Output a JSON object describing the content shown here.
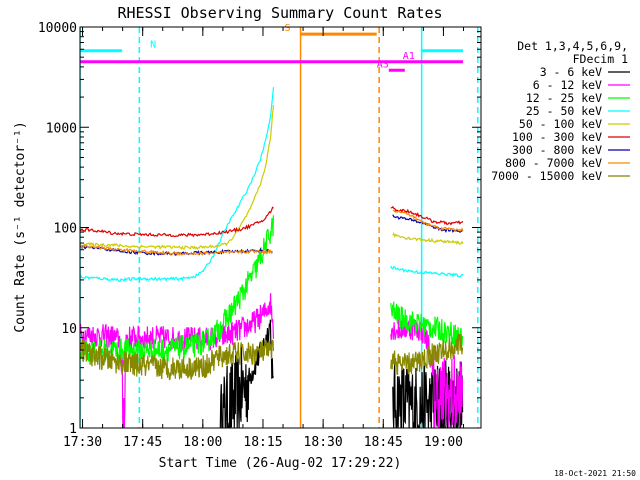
{
  "chart_data": {
    "type": "line",
    "title": "RHESSI Observing Summary Count Rates",
    "xlabel": "Start Time (26-Aug-02 17:29:22)",
    "ylabel": "Count Rate (s⁻¹ detector⁻¹)",
    "x_unit": "minutes after 17:29:22",
    "xlim": [
      0,
      100
    ],
    "ylim": [
      1,
      10000
    ],
    "y_scale": "log",
    "x_ticks": [
      {
        "x": 0.63,
        "label": "17:30"
      },
      {
        "x": 15.63,
        "label": "17:45"
      },
      {
        "x": 30.63,
        "label": "18:00"
      },
      {
        "x": 45.63,
        "label": "18:15"
      },
      {
        "x": 60.63,
        "label": "18:30"
      },
      {
        "x": 75.63,
        "label": "18:45"
      },
      {
        "x": 90.63,
        "label": "19:00"
      }
    ],
    "y_ticks": [
      {
        "y": 1,
        "label": "1"
      },
      {
        "y": 10,
        "label": "10"
      },
      {
        "y": 100,
        "label": "100"
      },
      {
        "y": 1000,
        "label": "1000"
      },
      {
        "y": 10000,
        "label": "10000"
      }
    ],
    "legend": {
      "title_lines": [
        "Det 1,3,4,5,6,9,",
        "FDecim 1"
      ],
      "placement": "right"
    },
    "series": [
      {
        "name": "3 - 6 keV",
        "color": "#000000",
        "noisy": true,
        "points": [
          [
            35,
            1
          ],
          [
            36,
            1.4
          ],
          [
            38,
            1.8
          ],
          [
            40,
            2.2
          ],
          [
            42,
            3
          ],
          [
            44,
            4.5
          ],
          [
            46,
            7
          ],
          [
            47.5,
            11
          ],
          [
            48.3,
            1
          ],
          [
            78,
            1.8
          ],
          [
            80,
            1.8
          ],
          [
            84,
            1.6
          ],
          [
            88,
            1.7
          ],
          [
            92,
            1.8
          ],
          [
            95.5,
            1.8
          ]
        ]
      },
      {
        "name": "6 - 12 keV",
        "color": "#ff00ff",
        "noisy": true,
        "points": [
          [
            0,
            8.5
          ],
          [
            8,
            8.2
          ],
          [
            10,
            7.5
          ],
          [
            10.8,
            1
          ],
          [
            11.5,
            8
          ],
          [
            16,
            8
          ],
          [
            20,
            8
          ],
          [
            24,
            7.8
          ],
          [
            28,
            7.8
          ],
          [
            32,
            7.8
          ],
          [
            36,
            8.2
          ],
          [
            40,
            9.5
          ],
          [
            43,
            11
          ],
          [
            46,
            14
          ],
          [
            47.5,
            18
          ],
          [
            48.3,
            9
          ],
          [
            77.5,
            10
          ],
          [
            79,
            9.5
          ],
          [
            82,
            10
          ],
          [
            85,
            9.5
          ],
          [
            87,
            7
          ],
          [
            88.5,
            2
          ],
          [
            95.5,
            2
          ]
        ]
      },
      {
        "name": "12 - 25 keV",
        "color": "#00ff00",
        "noisy": true,
        "points": [
          [
            0,
            5.8
          ],
          [
            10,
            6
          ],
          [
            20,
            6
          ],
          [
            28,
            6.5
          ],
          [
            32,
            7.5
          ],
          [
            35,
            10
          ],
          [
            38,
            15
          ],
          [
            41,
            24
          ],
          [
            44,
            40
          ],
          [
            46.5,
            70
          ],
          [
            48.3,
            110
          ],
          [
            77.5,
            15
          ],
          [
            80,
            12.5
          ],
          [
            84,
            11
          ],
          [
            88,
            10
          ],
          [
            92,
            9
          ],
          [
            95.5,
            8
          ]
        ]
      },
      {
        "name": "25 - 50 keV",
        "color": "#00ffff",
        "noisy": false,
        "points": [
          [
            0,
            32
          ],
          [
            5,
            31
          ],
          [
            10,
            30
          ],
          [
            15,
            31
          ],
          [
            20,
            30.5
          ],
          [
            26,
            31
          ],
          [
            29,
            33
          ],
          [
            31,
            38
          ],
          [
            33,
            50
          ],
          [
            35,
            75
          ],
          [
            37,
            110
          ],
          [
            39,
            150
          ],
          [
            41,
            210
          ],
          [
            43,
            300
          ],
          [
            45,
            480
          ],
          [
            46.5,
            800
          ],
          [
            47.5,
            1300
          ],
          [
            48.3,
            2600
          ],
          [
            77.5,
            40
          ],
          [
            80,
            38
          ],
          [
            84,
            36
          ],
          [
            88,
            35
          ],
          [
            92,
            34
          ],
          [
            95.5,
            33
          ]
        ]
      },
      {
        "name": "50 - 100 keV",
        "color": "#cccc00",
        "noisy": false,
        "points": [
          [
            0,
            68
          ],
          [
            8,
            67
          ],
          [
            12,
            65
          ],
          [
            20,
            64
          ],
          [
            28,
            63
          ],
          [
            32,
            64
          ],
          [
            35,
            66
          ],
          [
            37,
            70
          ],
          [
            39,
            90
          ],
          [
            41,
            120
          ],
          [
            43,
            170
          ],
          [
            45,
            270
          ],
          [
            46.5,
            450
          ],
          [
            47.5,
            800
          ],
          [
            48.3,
            1700
          ],
          [
            78,
            85
          ],
          [
            82,
            78
          ],
          [
            86,
            75
          ],
          [
            90,
            73
          ],
          [
            95.5,
            70
          ]
        ]
      },
      {
        "name": "100 - 300 keV",
        "color": "#dd0000",
        "noisy": false,
        "points": [
          [
            0,
            95
          ],
          [
            4,
            93
          ],
          [
            8,
            88
          ],
          [
            12,
            86
          ],
          [
            16,
            85
          ],
          [
            22,
            84
          ],
          [
            28,
            84
          ],
          [
            32,
            86
          ],
          [
            36,
            90
          ],
          [
            40,
            96
          ],
          [
            43,
            105
          ],
          [
            46,
            120
          ],
          [
            48.3,
            160
          ],
          [
            77.5,
            160
          ],
          [
            79,
            150
          ],
          [
            82,
            145
          ],
          [
            84,
            135
          ],
          [
            86,
            125
          ],
          [
            88,
            115
          ],
          [
            92,
            110
          ],
          [
            95.5,
            112
          ]
        ]
      },
      {
        "name": "300 - 800 keV",
        "color": "#0000aa",
        "noisy": false,
        "points": [
          [
            0,
            64
          ],
          [
            5,
            62
          ],
          [
            10,
            58
          ],
          [
            15,
            56
          ],
          [
            20,
            55
          ],
          [
            25,
            55
          ],
          [
            30,
            56
          ],
          [
            35,
            57
          ],
          [
            40,
            58
          ],
          [
            45,
            59
          ],
          [
            48,
            58
          ],
          [
            78,
            130
          ],
          [
            82,
            120
          ],
          [
            86,
            110
          ],
          [
            90,
            95
          ],
          [
            95.5,
            92
          ]
        ]
      },
      {
        "name": "800 - 7000 keV",
        "color": "#ff8800",
        "noisy": false,
        "points": [
          [
            0,
            65
          ],
          [
            5,
            63
          ],
          [
            10,
            60
          ],
          [
            15,
            58
          ],
          [
            20,
            56
          ],
          [
            25,
            55
          ],
          [
            30,
            55
          ],
          [
            35,
            56
          ],
          [
            40,
            57
          ],
          [
            45,
            58
          ],
          [
            48,
            57
          ],
          [
            78,
            150
          ],
          [
            82,
            135
          ],
          [
            86,
            110
          ],
          [
            90,
            98
          ],
          [
            95.5,
            95
          ]
        ]
      },
      {
        "name": "7000 - 15000 keV",
        "color": "#888800",
        "noisy": true,
        "points": [
          [
            0,
            6
          ],
          [
            5,
            5
          ],
          [
            10,
            4.5
          ],
          [
            15,
            4.2
          ],
          [
            20,
            4
          ],
          [
            25,
            4
          ],
          [
            30,
            4
          ],
          [
            32,
            4.2
          ],
          [
            34,
            5
          ],
          [
            38,
            5.5
          ],
          [
            42,
            5.5
          ],
          [
            46,
            5.8
          ],
          [
            48.3,
            5.8
          ],
          [
            77.5,
            5
          ],
          [
            80,
            4.2
          ],
          [
            84,
            4.5
          ],
          [
            88,
            5.5
          ],
          [
            92,
            6
          ],
          [
            95.5,
            7
          ]
        ]
      }
    ],
    "flag_lines": [
      {
        "label": "N",
        "color": "#00ffff",
        "y": 5800,
        "segments": [
          [
            0,
            10.5
          ],
          [
            85,
            95.5
          ]
        ],
        "label_x": 17.5
      },
      {
        "label": "S",
        "color": "#ff8800",
        "y": 8500,
        "segments": [
          [
            55,
            74
          ]
        ],
        "label_x": 53
      },
      {
        "label": "A1",
        "color": "#ff00ff",
        "y": 4500,
        "segments": [
          [
            0,
            95.5
          ]
        ],
        "label_x": 80.5
      },
      {
        "label": "A3",
        "color": "#ff00ff",
        "y": 3700,
        "segments": [
          [
            77,
            81
          ]
        ],
        "label_x": 74
      }
    ],
    "vertical_markers": [
      {
        "x": 0,
        "color": "#00ffff",
        "dashed": false
      },
      {
        "x": 14.8,
        "color": "#00ffff",
        "dashed": true
      },
      {
        "x": 55,
        "color": "#ff8800",
        "dashed": false
      },
      {
        "x": 74.6,
        "color": "#ff8800",
        "dashed": true
      },
      {
        "x": 85.2,
        "color": "#00ffff",
        "dashed": false
      },
      {
        "x": 99.2,
        "color": "#00ffff",
        "dashed": true
      }
    ],
    "grid": false
  },
  "footer": {
    "timestamp": "18-Oct-2021 21:50"
  }
}
